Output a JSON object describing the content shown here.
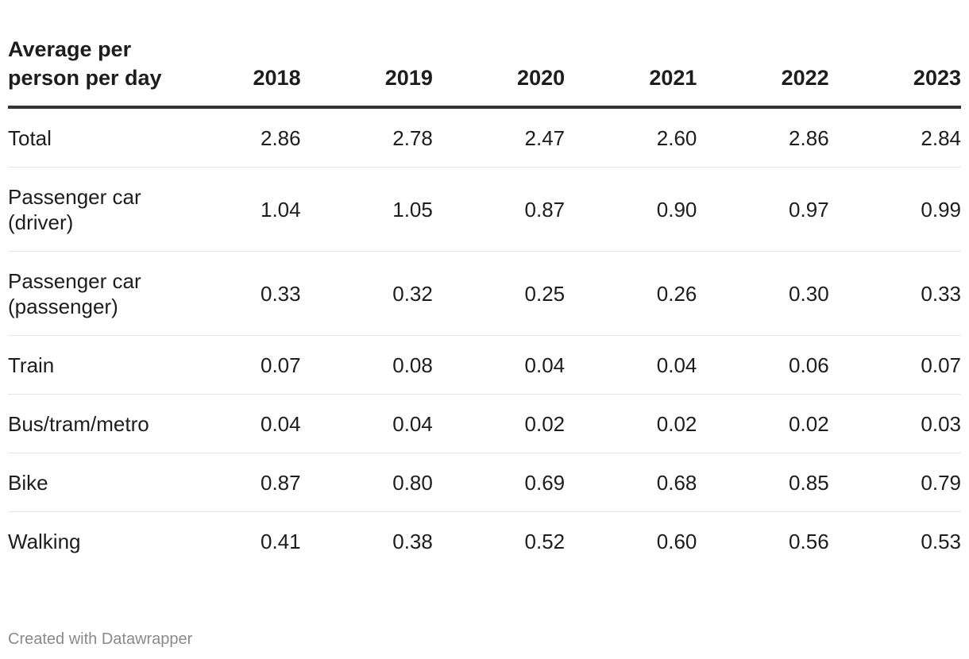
{
  "chart_data": {
    "type": "table",
    "header_label": "Average per person per day",
    "columns": [
      "2018",
      "2019",
      "2020",
      "2021",
      "2022",
      "2023"
    ],
    "rows": [
      {
        "label": "Total",
        "values": [
          "2.86",
          "2.78",
          "2.47",
          "2.60",
          "2.86",
          "2.84"
        ]
      },
      {
        "label": "Passenger car (driver)",
        "values": [
          "1.04",
          "1.05",
          "0.87",
          "0.90",
          "0.97",
          "0.99"
        ]
      },
      {
        "label": "Passenger car (passenger)",
        "values": [
          "0.33",
          "0.32",
          "0.25",
          "0.26",
          "0.30",
          "0.33"
        ]
      },
      {
        "label": "Train",
        "values": [
          "0.07",
          "0.08",
          "0.04",
          "0.04",
          "0.06",
          "0.07"
        ]
      },
      {
        "label": "Bus/tram/metro",
        "values": [
          "0.04",
          "0.04",
          "0.02",
          "0.02",
          "0.02",
          "0.03"
        ]
      },
      {
        "label": "Bike",
        "values": [
          "0.87",
          "0.80",
          "0.69",
          "0.68",
          "0.85",
          "0.79"
        ]
      },
      {
        "label": "Walking",
        "values": [
          "0.41",
          "0.38",
          "0.52",
          "0.60",
          "0.56",
          "0.53"
        ]
      }
    ]
  },
  "footer": {
    "credit": "Created with Datawrapper"
  }
}
